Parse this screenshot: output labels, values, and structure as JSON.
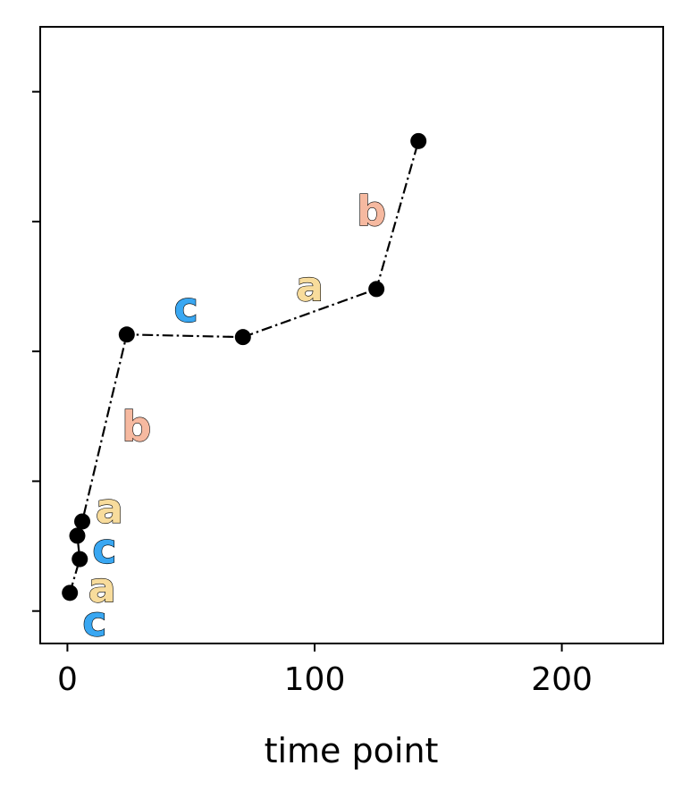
{
  "chart_data": {
    "type": "line",
    "title": "",
    "xlabel": "time point",
    "ylabel": "",
    "xlim": [
      -11,
      241
    ],
    "ylim": [
      -0.25,
      4.5
    ],
    "xticks": [
      0,
      100,
      200
    ],
    "xtick_labels": [
      "0",
      "100",
      "200"
    ],
    "yticks": [
      0,
      1,
      2,
      3,
      4
    ],
    "ytick_labels": [
      "",
      "",
      "",
      "",
      ""
    ],
    "grid": false,
    "legend": "none",
    "line_style": "dash-dot",
    "series": [
      {
        "x": [
          1,
          5,
          4,
          6,
          24,
          71,
          125,
          142
        ],
        "y": [
          0.14,
          0.4,
          0.58,
          0.69,
          2.13,
          2.11,
          2.48,
          3.62
        ]
      }
    ],
    "segment_labels": [
      {
        "text": "c",
        "x": 11,
        "y": -0.08,
        "color": "#39a7f2"
      },
      {
        "text": "a",
        "x": 14,
        "y": 0.18,
        "color": "#f8dc9c"
      },
      {
        "text": "c",
        "x": 15,
        "y": 0.48,
        "color": "#39a7f2"
      },
      {
        "text": "a",
        "x": 17,
        "y": 0.79,
        "color": "#f8dc9c"
      },
      {
        "text": "b",
        "x": 28,
        "y": 1.42,
        "color": "#f6b9a0"
      },
      {
        "text": "c",
        "x": 48,
        "y": 2.34,
        "color": "#39a7f2"
      },
      {
        "text": "a",
        "x": 98,
        "y": 2.5,
        "color": "#f8dc9c"
      },
      {
        "text": "b",
        "x": 123,
        "y": 3.08,
        "color": "#f6b9a0"
      }
    ]
  }
}
